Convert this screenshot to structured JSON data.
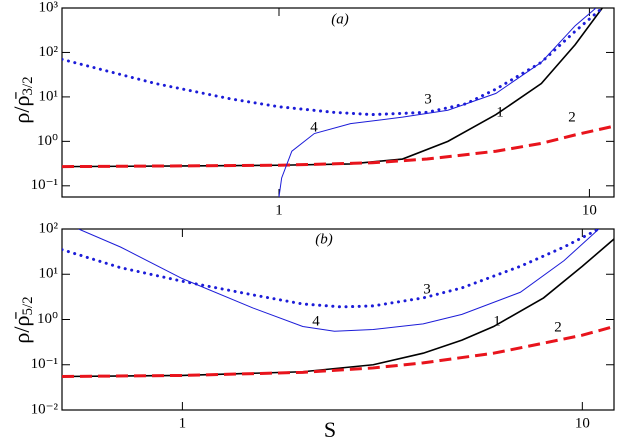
{
  "chart_data": [
    {
      "type": "line",
      "annotation": "(a)",
      "xscale": "log",
      "yscale": "log",
      "xlim": [
        0.2,
        12
      ],
      "ylim": [
        0.056,
        1000
      ],
      "xticks": [
        1,
        10
      ],
      "yticks": [
        {
          "value": 0.1,
          "label": "10⁻¹"
        },
        {
          "value": 1,
          "label": "10⁰"
        },
        {
          "value": 10,
          "label": "10¹"
        },
        {
          "value": 100,
          "label": "10²"
        },
        {
          "value": 1000,
          "label": "10³"
        }
      ],
      "ylabel_main": "ρ/ρ̄",
      "ylabel_sub": "3/2",
      "series": [
        {
          "name": "1",
          "color": "#000000",
          "style": "solid",
          "x": [
            0.2,
            0.5,
            1,
            1.7,
            2.5,
            3.5,
            5,
            7,
            9,
            11
          ],
          "values": [
            0.27,
            0.28,
            0.29,
            0.31,
            0.4,
            1.0,
            4,
            20,
            150,
            1000
          ]
        },
        {
          "name": "2",
          "color": "#e8141c",
          "style": "dashed",
          "x": [
            0.2,
            1,
            2,
            3,
            5,
            7,
            9,
            12
          ],
          "values": [
            0.27,
            0.29,
            0.33,
            0.4,
            0.6,
            0.9,
            1.4,
            2.2
          ]
        },
        {
          "name": "3",
          "color": "#1c1cd8",
          "style": "dotted",
          "x": [
            0.2,
            0.4,
            0.7,
            1,
            1.5,
            2,
            3,
            4,
            5,
            7,
            9,
            11
          ],
          "values": [
            70,
            20,
            9,
            6,
            4.5,
            4,
            4.5,
            7,
            15,
            60,
            300,
            1000
          ]
        },
        {
          "name": "4",
          "color": "#1c1cd8",
          "style": "thin",
          "x": [
            1.0,
            1.02,
            1.1,
            1.3,
            1.7,
            2.5,
            3.5,
            5,
            7,
            9,
            10.5
          ],
          "values": [
            0.056,
            0.15,
            0.6,
            1.5,
            2.5,
            3.5,
            5,
            12,
            60,
            400,
            1000
          ]
        }
      ]
    },
    {
      "type": "line",
      "annotation": "(b)",
      "xscale": "log",
      "yscale": "log",
      "xlabel": "S",
      "xlim": [
        0.5,
        12
      ],
      "ylim": [
        0.01,
        100
      ],
      "xticks": [
        1,
        10
      ],
      "yticks": [
        {
          "value": 0.01,
          "label": "10⁻²"
        },
        {
          "value": 0.1,
          "label": "10⁻¹"
        },
        {
          "value": 1,
          "label": "10⁰"
        },
        {
          "value": 10,
          "label": "10¹"
        },
        {
          "value": 100,
          "label": "10²"
        }
      ],
      "ylabel_main": "ρ/ρ̄",
      "ylabel_sub": "5/2",
      "series": [
        {
          "name": "1",
          "color": "#000000",
          "style": "solid",
          "x": [
            0.5,
            1,
            2,
            3,
            4,
            5,
            6,
            8,
            10,
            12
          ],
          "values": [
            0.055,
            0.058,
            0.07,
            0.1,
            0.18,
            0.35,
            0.7,
            3,
            15,
            60
          ]
        },
        {
          "name": "2",
          "color": "#e8141c",
          "style": "dashed",
          "x": [
            0.5,
            1,
            2,
            3,
            4,
            6,
            8,
            10,
            12
          ],
          "values": [
            0.055,
            0.058,
            0.068,
            0.085,
            0.11,
            0.18,
            0.3,
            0.45,
            0.7
          ]
        },
        {
          "name": "3",
          "color": "#1c1cd8",
          "style": "dotted",
          "x": [
            0.5,
            0.7,
            1,
            1.5,
            2,
            2.5,
            3,
            4,
            5,
            7,
            9,
            11
          ],
          "values": [
            35,
            14,
            7,
            3.5,
            2.2,
            1.9,
            2,
            3,
            5,
            15,
            40,
            100
          ]
        },
        {
          "name": "4",
          "color": "#1c1cd8",
          "style": "thin",
          "x": [
            0.55,
            0.7,
            1,
            1.5,
            2,
            2.4,
            3,
            4,
            5,
            7,
            9,
            11
          ],
          "values": [
            100,
            40,
            8,
            1.8,
            0.7,
            0.55,
            0.6,
            0.8,
            1.3,
            4,
            20,
            100
          ]
        }
      ]
    }
  ]
}
